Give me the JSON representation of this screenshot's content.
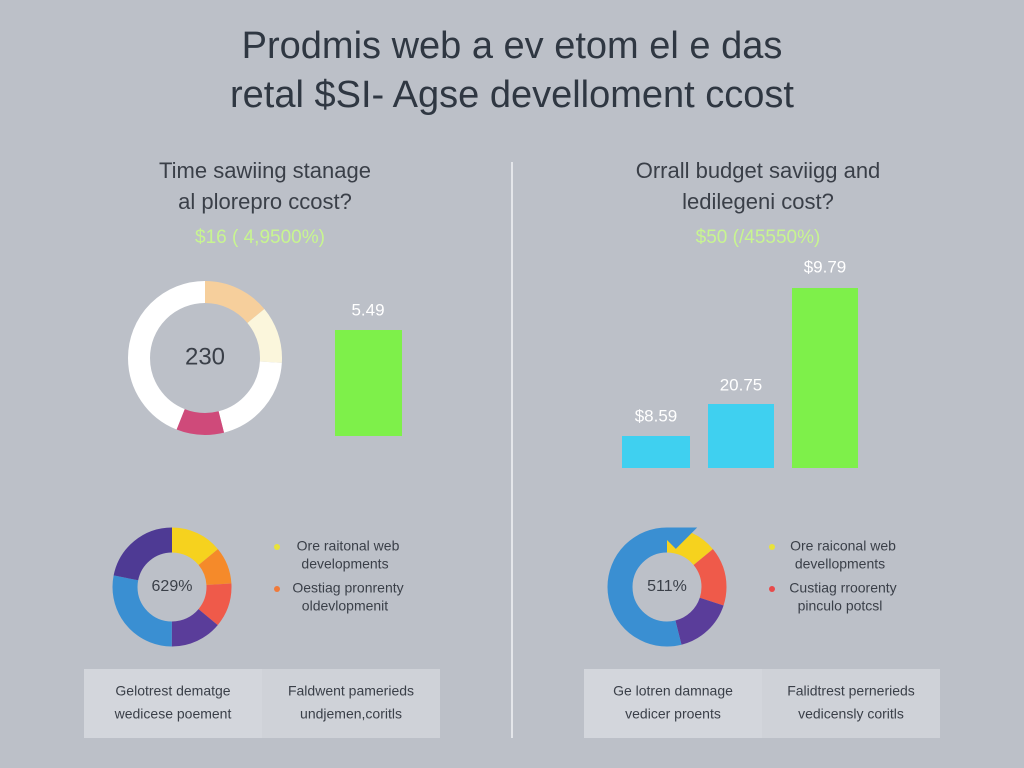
{
  "title": [
    "Prodmis web a ev etom el e das",
    "retal $SI- Agse develloment ccost"
  ],
  "panels": [
    {
      "heading": [
        "Time sawiing stanage",
        "al plorepro ccost?"
      ],
      "highlight": "$16 ( 4,9500%)",
      "donut": {
        "center_label": "230",
        "segments": [
          {
            "color": "#f6cf9c",
            "value": 14
          },
          {
            "color": "#fbf6dc",
            "value": 12
          },
          {
            "color": "#ffffff",
            "value": 20
          },
          {
            "color": "#cf4a7a",
            "value": 10
          },
          {
            "color": "#ffffff",
            "value": 44
          }
        ]
      },
      "bar_labels": [
        "5.49"
      ],
      "small_donut": {
        "center_label": "629%",
        "segments": [
          {
            "color": "#f6d21e",
            "value": 14
          },
          {
            "color": "#f58a2a",
            "value": 10
          },
          {
            "color": "#ef5a4a",
            "value": 12
          },
          {
            "color": "#5a3d9a",
            "value": 14
          },
          {
            "color": "#3a8fd2",
            "value": 28
          },
          {
            "color": "#4e3a94",
            "value": 22
          }
        ]
      },
      "legend": [
        {
          "color": "#e8e23a",
          "lines": [
            "Ore raitonal web",
            "developments"
          ]
        },
        {
          "color": "#f07a3a",
          "lines": [
            "Oestiag pronrenty",
            "oldevlopmenit"
          ]
        }
      ],
      "boxes": [
        [
          "Gelotrest dematge",
          "wedicese poement"
        ],
        [
          "Faldwent pamerieds",
          "undjemen,coritls"
        ]
      ]
    },
    {
      "heading": [
        "Orrall budget saviigg and",
        "ledilegeni cost?"
      ],
      "highlight": "$50 (/45550%)",
      "bar_labels": [
        "$8.59",
        "20.75",
        "$9.79"
      ],
      "small_donut": {
        "center_label": "511%",
        "segments": [
          {
            "color": "#f6d21e",
            "value": 14
          },
          {
            "color": "#ef5a4a",
            "value": 16
          },
          {
            "color": "#5a3d9a",
            "value": 16
          },
          {
            "color": "#3a8fd2",
            "value": 54
          }
        ]
      },
      "legend": [
        {
          "color": "#e8e23a",
          "lines": [
            "Ore raiconal web",
            "devellopments"
          ]
        },
        {
          "color": "#e84a4a",
          "lines": [
            "Custiag rroorenty",
            "pinculo potcsl"
          ]
        }
      ],
      "boxes": [
        [
          "Ge lotren damnage",
          "vedicer proents"
        ],
        [
          "Falidtrest pernerieds",
          "vedicensly coritls"
        ]
      ]
    }
  ]
}
